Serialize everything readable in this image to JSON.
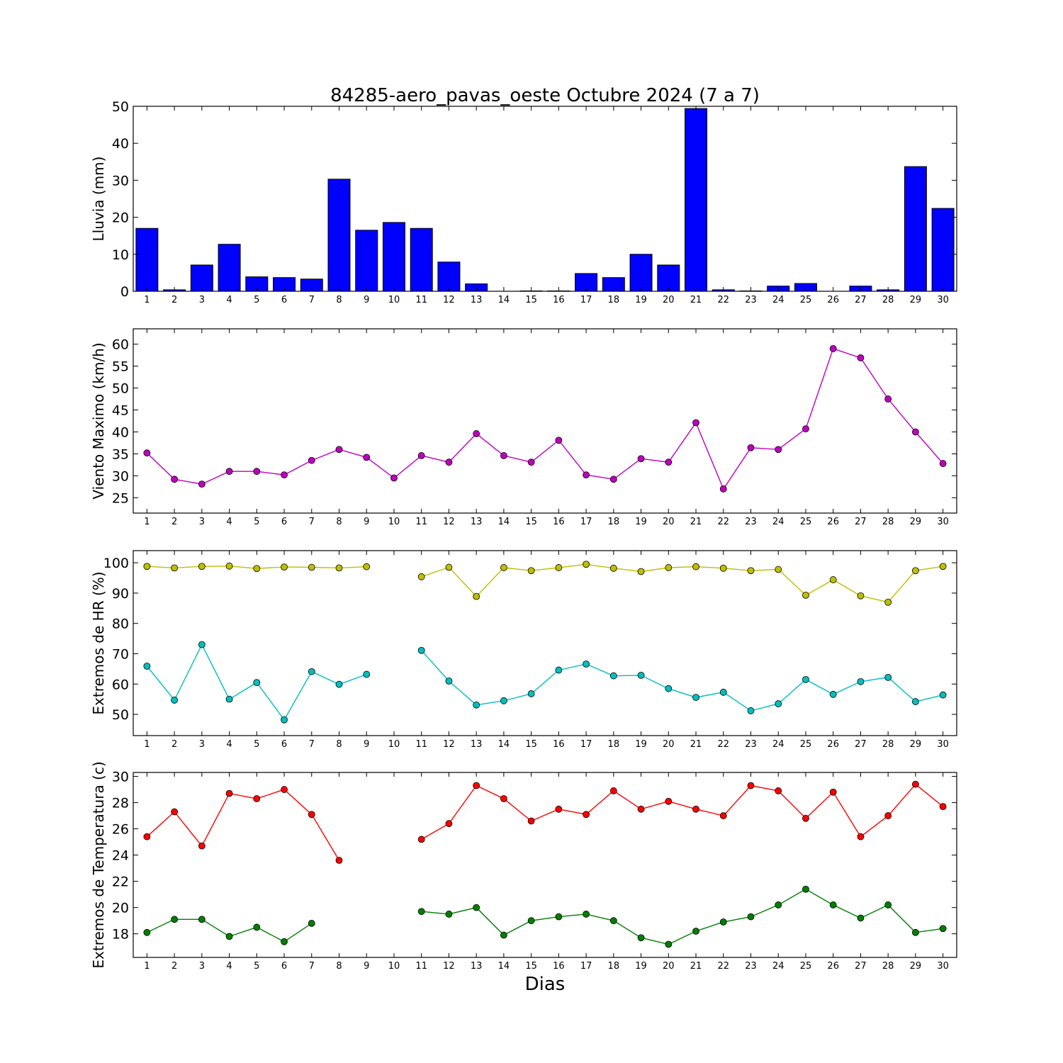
{
  "chart_data": [
    {
      "type": "bar",
      "title": "84285-aero_pavas_oeste Octubre 2024  (7 a 7)",
      "xlabel": "",
      "ylabel": "Lluvia (mm)",
      "categories": [
        "1",
        "2",
        "3",
        "4",
        "5",
        "6",
        "7",
        "8",
        "9",
        "10",
        "11",
        "12",
        "13",
        "14",
        "15",
        "16",
        "17",
        "18",
        "19",
        "20",
        "21",
        "22",
        "23",
        "24",
        "25",
        "26",
        "27",
        "28",
        "29",
        "30"
      ],
      "values": [
        17.0,
        0.4,
        7.1,
        12.7,
        3.9,
        3.7,
        3.3,
        30.3,
        16.5,
        18.6,
        17.0,
        7.9,
        2.0,
        0.0,
        0.1,
        0.1,
        4.8,
        3.7,
        10.0,
        7.1,
        49.4,
        0.4,
        0.1,
        1.4,
        2.1,
        0.0,
        1.4,
        0.4,
        33.7,
        22.4
      ],
      "ylim": [
        0,
        50
      ],
      "yticks": [
        0,
        10,
        20,
        30,
        40,
        50
      ],
      "color": "#0000ff"
    },
    {
      "type": "line",
      "xlabel": "",
      "ylabel": "Viento Maximo (km/h)",
      "categories": [
        "1",
        "2",
        "3",
        "4",
        "5",
        "6",
        "7",
        "8",
        "9",
        "10",
        "11",
        "12",
        "13",
        "14",
        "15",
        "16",
        "17",
        "18",
        "19",
        "20",
        "21",
        "22",
        "23",
        "24",
        "25",
        "26",
        "27",
        "28",
        "29",
        "30"
      ],
      "series": [
        {
          "color": "#bf00bf",
          "values": [
            35.2,
            29.2,
            28.1,
            31.0,
            31.0,
            30.2,
            33.5,
            36.0,
            34.2,
            29.5,
            34.6,
            33.1,
            39.6,
            34.6,
            33.1,
            38.1,
            30.2,
            29.2,
            33.9,
            33.1,
            42.1,
            27.0,
            36.4,
            36.0,
            40.7,
            59.0,
            56.9,
            47.5,
            40.0,
            32.8
          ]
        }
      ],
      "ylim": [
        21.5,
        63.5
      ],
      "yticks": [
        25,
        30,
        35,
        40,
        45,
        50,
        55,
        60
      ]
    },
    {
      "type": "line",
      "xlabel": "",
      "ylabel": "Extremos de HR (%)",
      "categories": [
        "1",
        "2",
        "3",
        "4",
        "5",
        "6",
        "7",
        "8",
        "9",
        "10",
        "11",
        "12",
        "13",
        "14",
        "15",
        "16",
        "17",
        "18",
        "19",
        "20",
        "21",
        "22",
        "23",
        "24",
        "25",
        "26",
        "27",
        "28",
        "29",
        "30"
      ],
      "series": [
        {
          "color": "#bfbf00",
          "values": [
            98.8,
            98.3,
            98.8,
            98.9,
            98.1,
            98.6,
            98.5,
            98.3,
            98.7,
            null,
            95.4,
            98.5,
            88.9,
            98.4,
            97.4,
            98.4,
            99.5,
            98.2,
            97.1,
            98.4,
            98.7,
            98.2,
            97.4,
            97.8,
            89.3,
            94.4,
            89.1,
            87.0,
            97.4,
            98.8
          ]
        },
        {
          "color": "#00bfbf",
          "values": [
            65.9,
            54.7,
            73.0,
            55.0,
            60.5,
            48.2,
            64.1,
            59.9,
            63.2,
            null,
            71.1,
            61.0,
            53.1,
            54.5,
            56.8,
            64.6,
            66.6,
            62.7,
            62.9,
            58.5,
            55.6,
            57.3,
            51.2,
            53.5,
            61.5,
            56.6,
            60.8,
            62.2,
            54.2,
            56.4
          ]
        }
      ],
      "ylim": [
        43,
        104
      ],
      "yticks": [
        50,
        60,
        70,
        80,
        90,
        100
      ]
    },
    {
      "type": "line",
      "xlabel": "Dias",
      "ylabel": "Extremos de Temperatura (c)",
      "categories": [
        "1",
        "2",
        "3",
        "4",
        "5",
        "6",
        "7",
        "8",
        "9",
        "10",
        "11",
        "12",
        "13",
        "14",
        "15",
        "16",
        "17",
        "18",
        "19",
        "20",
        "21",
        "22",
        "23",
        "24",
        "25",
        "26",
        "27",
        "28",
        "29",
        "30"
      ],
      "series": [
        {
          "color": "#ff0000",
          "values": [
            25.4,
            27.3,
            24.7,
            28.7,
            28.3,
            29.0,
            27.1,
            23.6,
            null,
            null,
            25.2,
            26.4,
            29.3,
            28.3,
            26.6,
            27.5,
            27.1,
            28.9,
            27.5,
            28.1,
            27.5,
            27.0,
            29.3,
            28.9,
            26.8,
            28.8,
            25.4,
            27.0,
            29.4,
            27.7
          ]
        },
        {
          "color": "#007f00",
          "values": [
            18.1,
            19.1,
            19.1,
            17.8,
            18.5,
            17.4,
            18.8,
            null,
            null,
            null,
            19.7,
            19.5,
            20.0,
            17.9,
            19.0,
            19.3,
            19.5,
            19.0,
            17.7,
            17.2,
            18.2,
            18.9,
            19.3,
            20.2,
            21.4,
            20.2,
            19.2,
            20.2,
            18.1,
            18.4
          ]
        }
      ],
      "ylim": [
        16.2,
        30.3
      ],
      "yticks": [
        18,
        20,
        22,
        24,
        26,
        28,
        30
      ]
    }
  ]
}
